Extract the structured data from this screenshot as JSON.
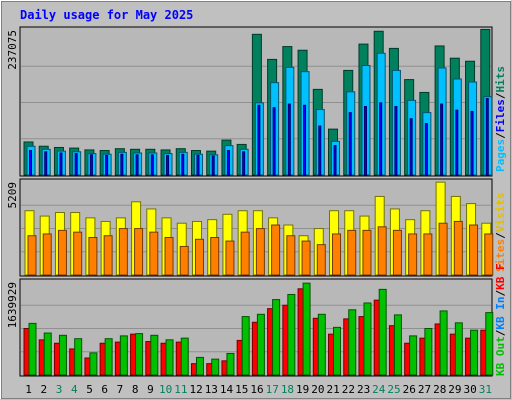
{
  "chart_data": {
    "type": "bar",
    "title": "Daily usage for May 2025",
    "categories": [
      "1",
      "2",
      "3",
      "4",
      "5",
      "6",
      "7",
      "8",
      "9",
      "10",
      "11",
      "12",
      "13",
      "14",
      "15",
      "16",
      "17",
      "18",
      "19",
      "20",
      "21",
      "22",
      "23",
      "24",
      "25",
      "26",
      "27",
      "28",
      "29",
      "30",
      "31"
    ],
    "weekend_days": [
      3,
      4,
      10,
      11,
      17,
      18,
      24,
      25,
      31
    ],
    "panels": [
      {
        "id": "hits",
        "ylabel_max": "237075",
        "ymax": 237075,
        "legend": [
          {
            "label": "Hits",
            "color": "#00805c"
          },
          {
            "label": "Files",
            "color": "#0000ff"
          },
          {
            "label": "Pages",
            "color": "#00c0ff"
          }
        ],
        "separator": "/",
        "series": [
          {
            "name": "Hits",
            "color": "#00805c",
            "values": [
              54000,
              47000,
              45000,
              44000,
              41000,
              40000,
              43000,
              42000,
              42000,
              41000,
              43000,
              40000,
              39000,
              57000,
              50000,
              230000,
              189000,
              210000,
              204000,
              140000,
              75000,
              171000,
              214000,
              235000,
              207000,
              156000,
              135000,
              211000,
              191000,
              186000,
              238000
            ]
          },
          {
            "name": "Files",
            "color": "#0000ff",
            "values": [
              40000,
              38000,
              36000,
              35000,
              33000,
              32000,
              34000,
              33000,
              33000,
              32000,
              34000,
              32000,
              31000,
              40000,
              38000,
              114000,
              110000,
              116000,
              114000,
              80000,
              48000,
              102000,
              112000,
              118000,
              112000,
              92000,
              84000,
              116000,
              106000,
              104000,
              125000
            ]
          },
          {
            "name": "Pages",
            "color": "#00c0ff",
            "values": [
              47000,
              42000,
              39000,
              38000,
              35000,
              34000,
              37000,
              36000,
              36000,
              35000,
              37000,
              34000,
              33000,
              48000,
              42000,
              118000,
              151000,
              176000,
              169000,
              107000,
              55000,
              136000,
              179000,
              199000,
              171000,
              122000,
              102000,
              175000,
              157000,
              152000,
              128000
            ]
          }
        ]
      },
      {
        "id": "visits",
        "ylabel_max": "5209",
        "ymax": 5209,
        "legend": [
          {
            "label": "Visits",
            "color": "#ffff00"
          },
          {
            "label": "Sites",
            "color": "#ff8000"
          }
        ],
        "separator": "/",
        "series": [
          {
            "name": "Visits",
            "color": "#ffff00",
            "values": [
              3600,
              3300,
              3500,
              3500,
              3200,
              3000,
              3200,
              4100,
              3700,
              3200,
              2900,
              3000,
              3100,
              3400,
              3600,
              3600,
              3200,
              2800,
              2200,
              2600,
              3600,
              3600,
              3300,
              4400,
              3700,
              3100,
              3600,
              5200,
              4400,
              4000,
              2900
            ]
          },
          {
            "name": "Sites",
            "color": "#ff8000",
            "values": [
              2200,
              2300,
              2500,
              2400,
              2100,
              2200,
              2600,
              2600,
              2400,
              2100,
              1600,
              2000,
              2100,
              1900,
              2400,
              2600,
              2800,
              2200,
              1900,
              1700,
              2300,
              2500,
              2500,
              2700,
              2500,
              2300,
              2300,
              2900,
              3000,
              2800,
              2300
            ]
          }
        ]
      },
      {
        "id": "kbytes",
        "ylabel_max": "1639929",
        "ymax": 1639929,
        "legend": [
          {
            "label": "KB F",
            "color": "#ff0000"
          },
          {
            "label": "KB In",
            "color": "#0080ff"
          },
          {
            "label": "KB Out",
            "color": "#00c000"
          }
        ],
        "separator": "/",
        "series": [
          {
            "name": "KB F",
            "color": "#ff0000",
            "values": [
              820000,
              620000,
              560000,
              460000,
              300000,
              560000,
              580000,
              720000,
              590000,
              560000,
              580000,
              200000,
              200000,
              250000,
              610000,
              930000,
              1170000,
              1230000,
              1520000,
              1000000,
              720000,
              990000,
              1030000,
              1320000,
              870000,
              560000,
              650000,
              900000,
              720000,
              650000,
              790000
            ]
          },
          {
            "name": "KB In",
            "color": "#0080ff",
            "values": [
              0,
              0,
              0,
              0,
              0,
              0,
              0,
              0,
              0,
              0,
              0,
              0,
              0,
              0,
              0,
              0,
              0,
              0,
              0,
              0,
              0,
              0,
              0,
              0,
              0,
              0,
              0,
              0,
              0,
              0,
              0
            ]
          },
          {
            "name": "KB Out",
            "color": "#00c000",
            "values": [
              910000,
              740000,
              700000,
              640000,
              390000,
              640000,
              690000,
              730000,
              700000,
              620000,
              650000,
              310000,
              280000,
              380000,
              1030000,
              1070000,
              1330000,
              1420000,
              1620000,
              1070000,
              840000,
              1150000,
              1270000,
              1510000,
              1060000,
              690000,
              820000,
              1130000,
              920000,
              790000,
              1100000
            ]
          }
        ]
      }
    ]
  }
}
